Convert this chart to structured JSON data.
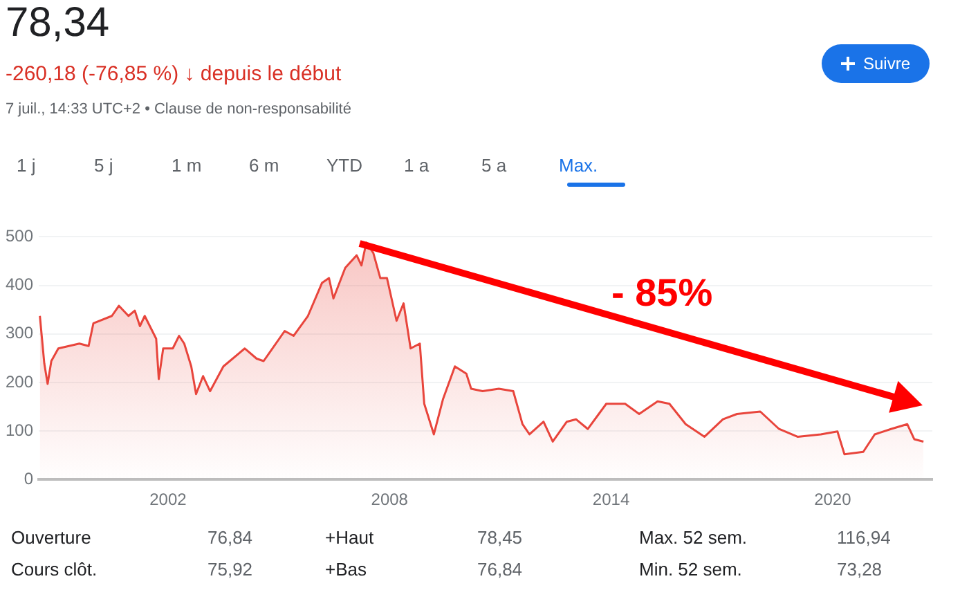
{
  "chart_data": {
    "type": "area",
    "title": "78,34",
    "subtitle": "-260,18 (-76,85 %) ↓ depuis le début",
    "annotations": [
      "7 juil., 14:33 UTC+2 • Clause de non-responsabilité",
      "Suivre",
      "1 j",
      "5 j",
      "1 m",
      "6 m",
      "YTD",
      "1 a",
      "5 a",
      "Max.",
      "- 85%",
      "Ouverture",
      "76,84",
      "+Haut",
      "78,45",
      "Max. 52 sem.",
      "116,94",
      "Cours clôt.",
      "75,92",
      "+Bas",
      "76,84",
      "Min. 52 sem.",
      "73,28"
    ],
    "x": [
      1998.53,
      1998.65,
      1998.74,
      1998.84,
      1999.03,
      1999.6,
      1999.85,
      1999.98,
      2000.48,
      2000.67,
      2000.93,
      2001.1,
      2001.24,
      2001.37,
      2001.68,
      2001.75,
      2001.87,
      2002.13,
      2002.3,
      2002.44,
      2002.63,
      2002.76,
      2002.95,
      2003.14,
      2003.5,
      2004.08,
      2004.4,
      2004.59,
      2005.16,
      2005.4,
      2005.79,
      2006.17,
      2006.36,
      2006.48,
      2006.8,
      2007.11,
      2007.24,
      2007.37,
      2007.56,
      2007.75,
      2007.93,
      2008.19,
      2008.38,
      2008.57,
      2008.82,
      2008.94,
      2009.2,
      2009.45,
      2009.77,
      2010.08,
      2010.21,
      2010.52,
      2010.96,
      2011.35,
      2011.6,
      2011.79,
      2012.17,
      2012.42,
      2012.8,
      2013.05,
      2013.37,
      2013.87,
      2014.38,
      2014.76,
      2015.26,
      2015.58,
      2016.02,
      2016.53,
      2017.03,
      2017.41,
      2018.04,
      2018.55,
      2019.05,
      2019.68,
      2020.13,
      2020.32,
      2020.83,
      2021.14,
      2021.58,
      2022.02,
      2022.21,
      2022.46
    ],
    "series": [
      {
        "color": "#e8453c",
        "values": [
          337,
          239,
          197,
          244,
          270,
          280,
          275,
          322,
          337,
          358,
          337,
          348,
          316,
          337,
          290,
          207,
          270,
          270,
          296,
          280,
          233,
          176,
          213,
          182,
          233,
          270,
          249,
          244,
          306,
          296,
          337,
          405,
          415,
          373,
          436,
          462,
          441,
          488,
          467,
          415,
          415,
          327,
          363,
          270,
          280,
          156,
          93,
          166,
          233,
          218,
          187,
          182,
          187,
          182,
          114,
          93,
          119,
          78,
          119,
          124,
          104,
          156,
          156,
          135,
          161,
          156,
          114,
          88,
          124,
          135,
          140,
          104,
          88,
          93,
          99,
          52,
          57,
          93,
          104,
          114,
          83,
          78
        ]
      }
    ],
    "xlim": [
      1998.5,
      2022.7
    ],
    "xticks": [
      2002,
      2008,
      2014,
      2020
    ],
    "ylim": [
      0,
      500
    ],
    "yticks": [
      0,
      100,
      200,
      300,
      400,
      500
    ],
    "grid": "y",
    "legend": false
  }
}
